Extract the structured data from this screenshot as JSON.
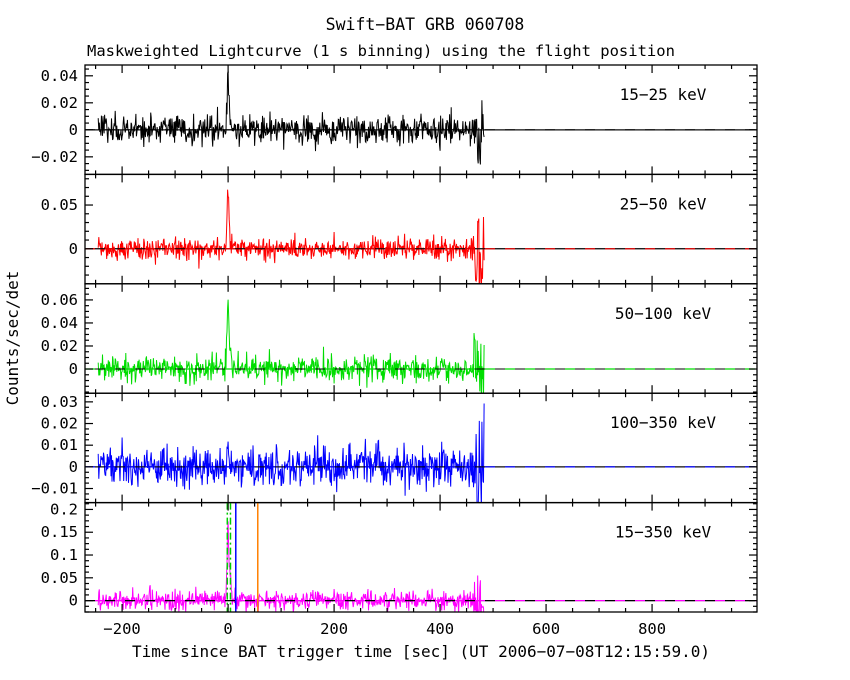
{
  "figure": {
    "title": "Swift−BAT GRB 060708",
    "subtitle": "Maskweighted Lightcurve (1 s binning) using the flight position",
    "xlabel": "Time since BAT trigger time [sec] (UT 2006−07−08T12:15:59.0)",
    "ylabel": "Counts/sec/det"
  },
  "chart_data": {
    "type": "line",
    "title": "Swift−BAT GRB 060708",
    "subtitle": "Maskweighted Lightcurve (1 s binning) using the flight position",
    "xlabel": "Time since BAT trigger time [sec] (UT 2006−07−08T12:15:59.0)",
    "ylabel": "Counts/sec/det",
    "grid": false,
    "x_range": [
      -270,
      998
    ],
    "x_ticks": [
      -200,
      0,
      200,
      400,
      600,
      800
    ],
    "x_minor_tick_step": 50,
    "binning_sec": 1,
    "data_start_sec": -245,
    "data_end_sec": 483,
    "trigger_time_utc": "2006−07−08T12:15:59.0",
    "panels": [
      {
        "label": "15−25 keV",
        "color": "#000000",
        "ylim": [
          -0.033,
          0.048
        ],
        "yticks": [
          -0.02,
          0,
          0.02,
          0.04
        ],
        "y_minor_step": 0.005,
        "baseline": 0,
        "baseline_style": "solid-black-plus-color-dashes",
        "noise_sigma": 0.0054,
        "peak": {
          "t": 0,
          "amplitude": 0.042,
          "rise_sigma": 1.8,
          "decay_tau": 3.0
        },
        "end_burst": {
          "t": 474,
          "width": 7,
          "scale": 3.2
        },
        "vlines": []
      },
      {
        "label": "25−50 keV",
        "color": "#ff0000",
        "ylim": [
          -0.04,
          0.085
        ],
        "yticks": [
          0,
          0.05
        ],
        "y_minor_step": 0.01,
        "baseline": 0,
        "baseline_style": "solid-black-plus-color-dashes",
        "noise_sigma": 0.0062,
        "peak": {
          "t": 0,
          "amplitude": 0.073,
          "rise_sigma": 1.8,
          "decay_tau": 2.5
        },
        "end_burst": {
          "t": 474,
          "width": 7,
          "scale": 4.2
        },
        "vlines": []
      },
      {
        "label": "50−100 keV",
        "color": "#00dd00",
        "ylim": [
          -0.021,
          0.074
        ],
        "yticks": [
          0,
          0.02,
          0.04,
          0.06
        ],
        "y_minor_step": 0.005,
        "baseline": 0,
        "baseline_style": "solid-black-plus-color-dashes",
        "noise_sigma": 0.0058,
        "peak": {
          "t": 0,
          "amplitude": 0.06,
          "rise_sigma": 1.8,
          "decay_tau": 2.5
        },
        "end_burst": {
          "t": 474,
          "width": 7,
          "scale": 3.0
        },
        "vlines": []
      },
      {
        "label": "100−350 keV",
        "color": "#0000ff",
        "ylim": [
          -0.0165,
          0.034
        ],
        "yticks": [
          -0.01,
          0,
          0.01,
          0.02,
          0.03
        ],
        "y_minor_step": 0.0025,
        "baseline": 0,
        "baseline_style": "solid-black-plus-color-dashes",
        "noise_sigma": 0.0047,
        "peak": {
          "t": 0,
          "amplitude": 0.013,
          "rise_sigma": 1.8,
          "decay_tau": 2.5
        },
        "end_burst": {
          "t": 474,
          "width": 7,
          "scale": 2.6
        },
        "vlines": []
      },
      {
        "label": "15−350 keV",
        "color": "#ff00ff",
        "ylim": [
          -0.025,
          0.215
        ],
        "yticks": [
          0,
          0.05,
          0.1,
          0.15,
          0.2
        ],
        "y_minor_step": 0.0125,
        "baseline": 0,
        "baseline_style": "dashed-black-plus-color-dashes",
        "noise_sigma": 0.0105,
        "peak": {
          "t": 0,
          "amplitude": 0.172,
          "rise_sigma": 1.8,
          "decay_tau": 2.8
        },
        "end_burst": {
          "t": 474,
          "width": 7,
          "scale": 3.4
        },
        "vlines": [
          {
            "t": -1.5,
            "color": "#00cc00",
            "style": "dashdot"
          },
          {
            "t": 4.5,
            "color": "#00cc00",
            "style": "dashdot"
          },
          {
            "t": 14.5,
            "color": "#0000ff",
            "style": "solid"
          },
          {
            "t": 56,
            "color": "#ff8000",
            "style": "solid"
          }
        ]
      }
    ]
  }
}
